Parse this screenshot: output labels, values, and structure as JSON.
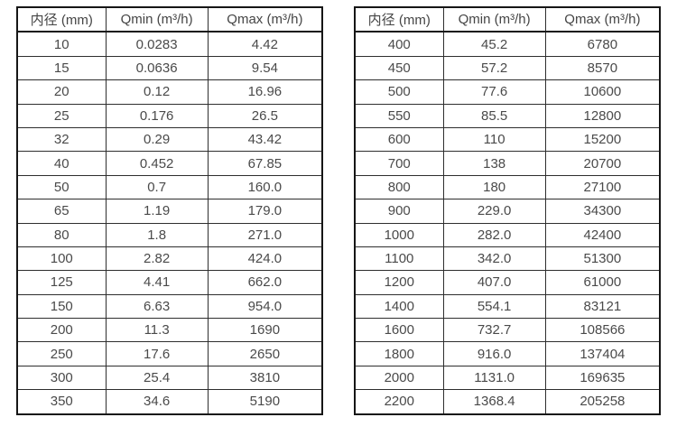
{
  "colors": {
    "background": "#ffffff",
    "outer_border": "#161616",
    "inner_border": "#2e2e2e",
    "text": "#4a4a4a"
  },
  "chart_data": [
    {
      "type": "table",
      "title": "",
      "columns": [
        "内径 (mm)",
        "Qmin (m³/h)",
        "Qmax (m³/h)"
      ],
      "rows": [
        [
          "10",
          "0.0283",
          "4.42"
        ],
        [
          "15",
          "0.0636",
          "9.54"
        ],
        [
          "20",
          "0.12",
          "16.96"
        ],
        [
          "25",
          "0.176",
          "26.5"
        ],
        [
          "32",
          "0.29",
          "43.42"
        ],
        [
          "40",
          "0.452",
          "67.85"
        ],
        [
          "50",
          "0.7",
          "160.0"
        ],
        [
          "65",
          "1.19",
          "179.0"
        ],
        [
          "80",
          "1.8",
          "271.0"
        ],
        [
          "100",
          "2.82",
          "424.0"
        ],
        [
          "125",
          "4.41",
          "662.0"
        ],
        [
          "150",
          "6.63",
          "954.0"
        ],
        [
          "200",
          "11.3",
          "1690"
        ],
        [
          "250",
          "17.6",
          "2650"
        ],
        [
          "300",
          "25.4",
          "3810"
        ],
        [
          "350",
          "34.6",
          "5190"
        ]
      ]
    },
    {
      "type": "table",
      "title": "",
      "columns": [
        "内径 (mm)",
        "Qmin (m³/h)",
        "Qmax (m³/h)"
      ],
      "rows": [
        [
          "400",
          "45.2",
          "6780"
        ],
        [
          "450",
          "57.2",
          "8570"
        ],
        [
          "500",
          "77.6",
          "10600"
        ],
        [
          "550",
          "85.5",
          "12800"
        ],
        [
          "600",
          "110",
          "15200"
        ],
        [
          "700",
          "138",
          "20700"
        ],
        [
          "800",
          "180",
          "27100"
        ],
        [
          "900",
          "229.0",
          "34300"
        ],
        [
          "1000",
          "282.0",
          "42400"
        ],
        [
          "1100",
          "342.0",
          "51300"
        ],
        [
          "1200",
          "407.0",
          "61000"
        ],
        [
          "1400",
          "554.1",
          "83121"
        ],
        [
          "1600",
          "732.7",
          "108566"
        ],
        [
          "1800",
          "916.0",
          "137404"
        ],
        [
          "2000",
          "1131.0",
          "169635"
        ],
        [
          "2200",
          "1368.4",
          "205258"
        ]
      ]
    }
  ]
}
